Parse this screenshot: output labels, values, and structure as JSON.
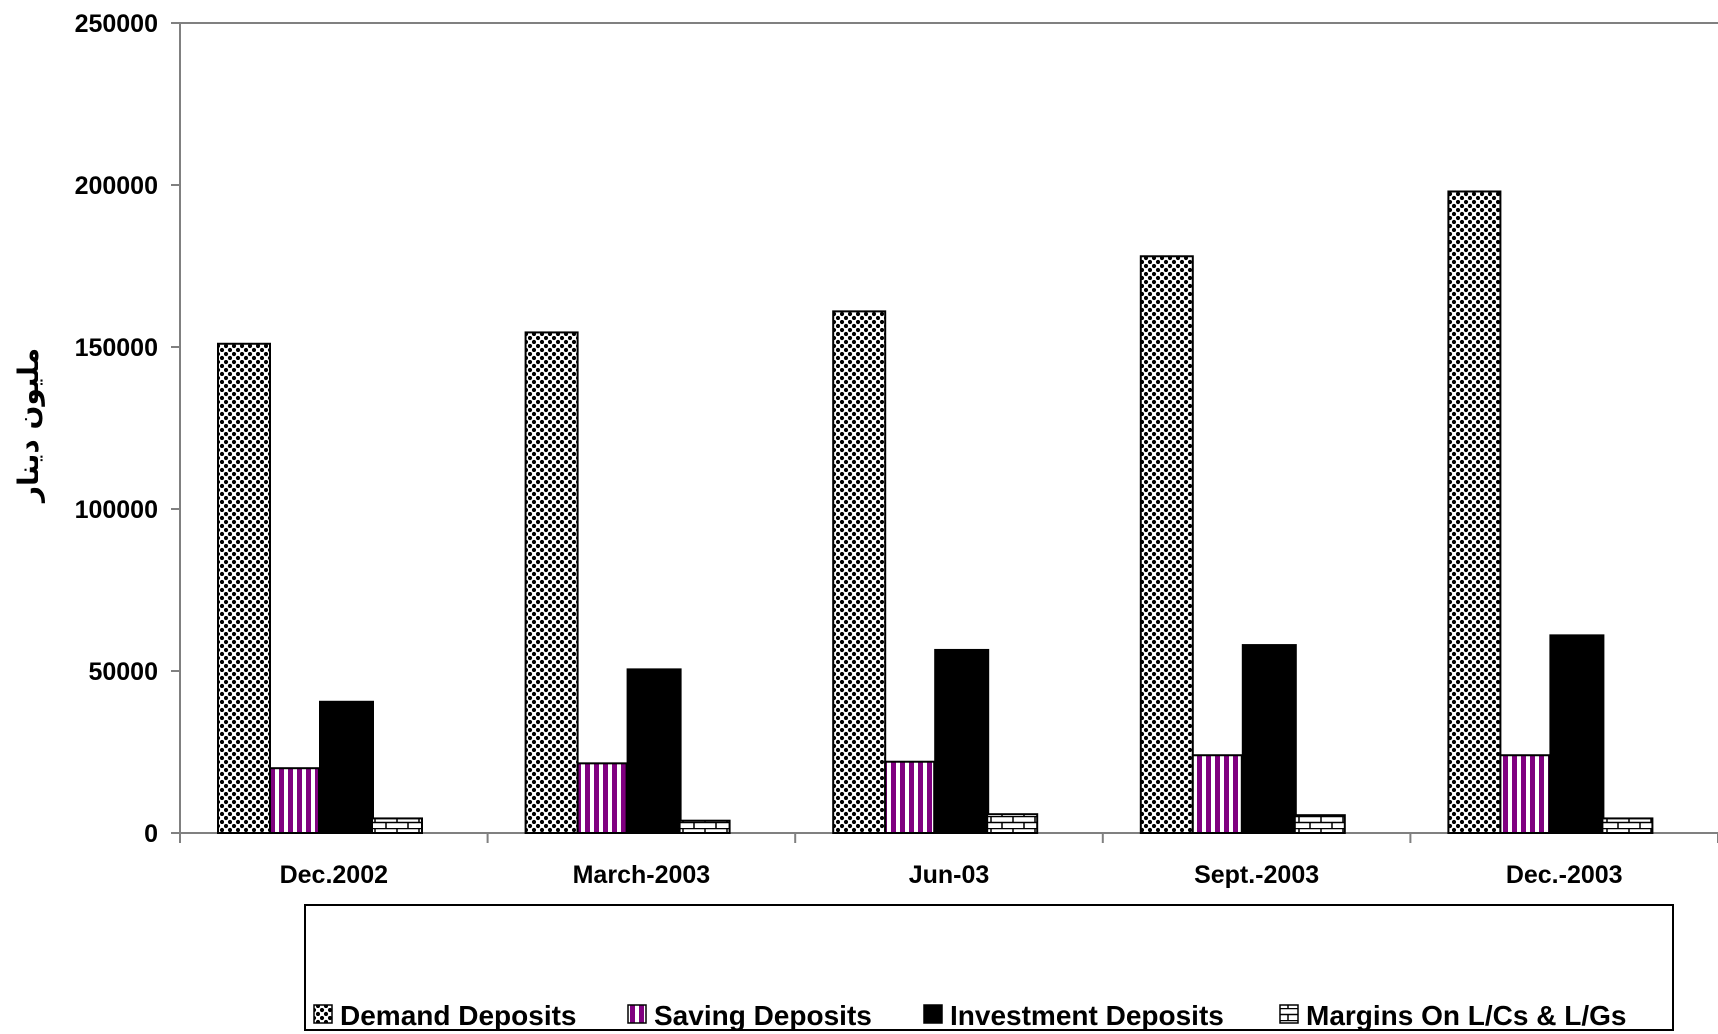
{
  "chart_data": {
    "type": "bar",
    "title": "",
    "xlabel": "",
    "ylabel": "مليون دينار",
    "ylim": [
      0,
      250000
    ],
    "yticks": [
      0,
      50000,
      100000,
      150000,
      200000,
      250000
    ],
    "grid": false,
    "legend_position": "bottom",
    "categories": [
      "Dec.2002",
      "March-2003",
      "Jun-03",
      "Sept.-2003",
      "Dec.-2003"
    ],
    "series": [
      {
        "name": "Demand Deposits",
        "values": [
          151000,
          154500,
          161000,
          178000,
          198000
        ],
        "pattern": "checker-dots",
        "color": "#000000"
      },
      {
        "name": "Saving Deposits",
        "values": [
          20000,
          21500,
          22000,
          24000,
          24000
        ],
        "pattern": "vertical-stripes",
        "color": "#800080"
      },
      {
        "name": "Investment Deposits",
        "values": [
          40500,
          50500,
          56500,
          58000,
          61000
        ],
        "pattern": "solid",
        "color": "#000000"
      },
      {
        "name": "Margins On L/Cs & L/Gs",
        "values": [
          4500,
          3800,
          5800,
          5500,
          4500
        ],
        "pattern": "brick",
        "color": "#000000"
      }
    ]
  }
}
